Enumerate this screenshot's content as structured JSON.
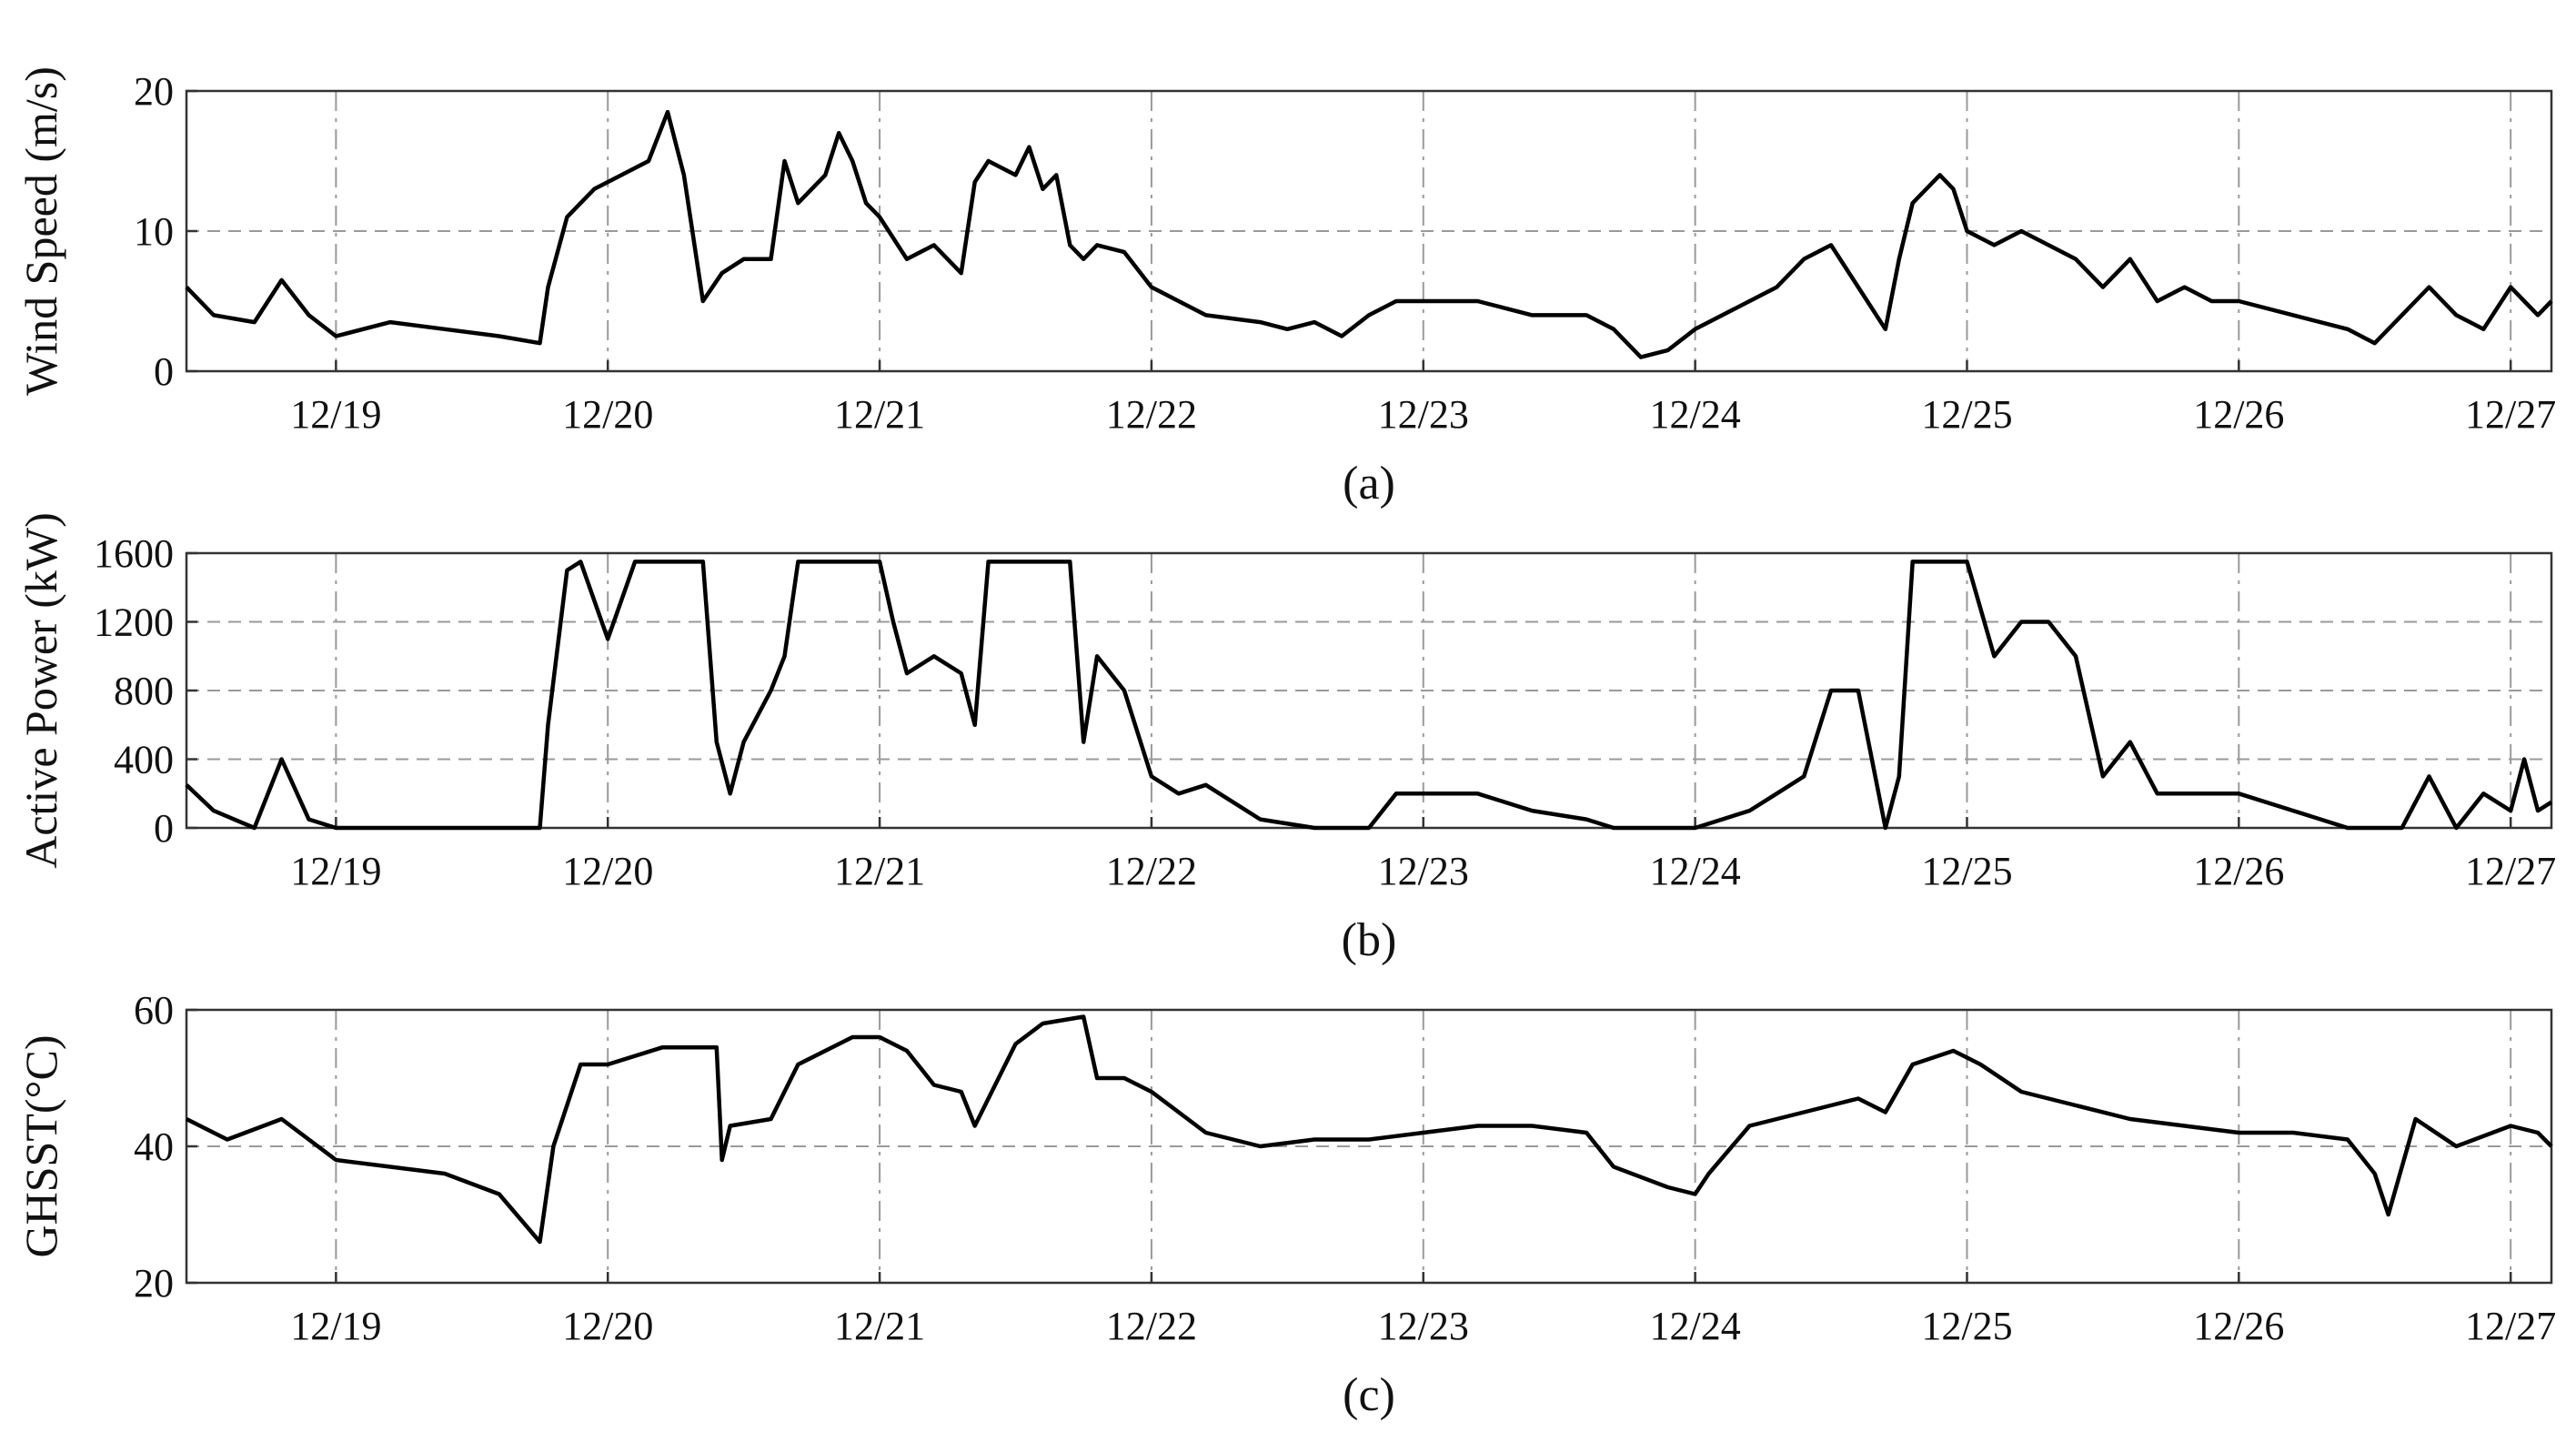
{
  "chart_data": [
    {
      "type": "line",
      "panel": "a",
      "caption": "(a)",
      "ylabel": "Wind Speed (m/s)",
      "xlabel": "",
      "ylim": [
        0,
        20
      ],
      "yticks": [
        0,
        10,
        20
      ],
      "xlim": [
        18.45,
        27.15
      ],
      "xticks": [
        {
          "v": 19,
          "label": "12/19"
        },
        {
          "v": 20,
          "label": "12/20"
        },
        {
          "v": 21,
          "label": "12/21"
        },
        {
          "v": 22,
          "label": "12/22"
        },
        {
          "v": 23,
          "label": "12/23"
        },
        {
          "v": 24,
          "label": "12/24"
        },
        {
          "v": 25,
          "label": "12/25"
        },
        {
          "v": 26,
          "label": "12/26"
        },
        {
          "v": 27,
          "label": "12/27"
        }
      ],
      "grid": true,
      "series": [
        {
          "name": "",
          "x": [
            18.45,
            18.55,
            18.7,
            18.8,
            18.9,
            19.0,
            19.2,
            19.4,
            19.6,
            19.75,
            19.78,
            19.85,
            19.95,
            20.05,
            20.15,
            20.22,
            20.28,
            20.35,
            20.42,
            20.5,
            20.6,
            20.65,
            20.7,
            20.8,
            20.85,
            20.9,
            20.95,
            21.0,
            21.1,
            21.2,
            21.3,
            21.35,
            21.4,
            21.5,
            21.55,
            21.6,
            21.65,
            21.7,
            21.75,
            21.8,
            21.9,
            22.0,
            22.1,
            22.2,
            22.4,
            22.5,
            22.6,
            22.7,
            22.8,
            22.9,
            23.0,
            23.2,
            23.4,
            23.6,
            23.7,
            23.8,
            23.9,
            24.0,
            24.2,
            24.3,
            24.4,
            24.5,
            24.6,
            24.7,
            24.75,
            24.8,
            24.9,
            24.95,
            25.0,
            25.1,
            25.2,
            25.3,
            25.4,
            25.5,
            25.6,
            25.7,
            25.8,
            25.9,
            26.0,
            26.2,
            26.4,
            26.5,
            26.6,
            26.7,
            26.8,
            26.9,
            27.0,
            27.05,
            27.1,
            27.15
          ],
          "values": [
            6,
            4,
            3.5,
            6.5,
            4,
            2.5,
            3.5,
            3,
            2.5,
            2,
            6,
            11,
            13,
            14,
            15,
            18.5,
            14,
            5,
            7,
            8,
            8,
            15,
            12,
            14,
            17,
            15,
            12,
            11,
            8,
            9,
            7,
            13.5,
            15,
            14,
            16,
            13,
            14,
            9,
            8,
            9,
            8.5,
            6,
            5,
            4,
            3.5,
            3,
            3.5,
            2.5,
            4,
            5,
            5,
            5,
            4,
            4,
            3,
            1,
            1.5,
            3,
            5,
            6,
            8,
            9,
            6,
            3,
            8,
            12,
            14,
            13,
            10,
            9,
            10,
            9,
            8,
            6,
            8,
            5,
            6,
            5,
            5,
            4,
            3,
            2,
            4,
            6,
            4,
            3,
            6,
            5,
            4,
            5
          ]
        }
      ]
    },
    {
      "type": "line",
      "panel": "b",
      "caption": "(b)",
      "ylabel": "Active Power (kW)",
      "xlabel": "",
      "ylim": [
        0,
        1600
      ],
      "yticks": [
        0,
        400,
        800,
        1200,
        1600
      ],
      "xlim": [
        18.45,
        27.15
      ],
      "xticks": [
        {
          "v": 19,
          "label": "12/19"
        },
        {
          "v": 20,
          "label": "12/20"
        },
        {
          "v": 21,
          "label": "12/21"
        },
        {
          "v": 22,
          "label": "12/22"
        },
        {
          "v": 23,
          "label": "12/23"
        },
        {
          "v": 24,
          "label": "12/24"
        },
        {
          "v": 25,
          "label": "12/25"
        },
        {
          "v": 26,
          "label": "12/26"
        },
        {
          "v": 27,
          "label": "12/27"
        }
      ],
      "grid": true,
      "series": [
        {
          "name": "",
          "x": [
            18.45,
            18.55,
            18.7,
            18.8,
            18.9,
            19.0,
            19.2,
            19.4,
            19.6,
            19.75,
            19.78,
            19.85,
            19.9,
            20.0,
            20.1,
            20.2,
            20.3,
            20.35,
            20.4,
            20.45,
            20.5,
            20.6,
            20.65,
            20.7,
            20.9,
            21.0,
            21.05,
            21.1,
            21.2,
            21.3,
            21.35,
            21.4,
            21.5,
            21.6,
            21.7,
            21.75,
            21.8,
            21.9,
            22.0,
            22.1,
            22.2,
            22.4,
            22.6,
            22.7,
            22.8,
            22.9,
            23.0,
            23.2,
            23.4,
            23.6,
            23.7,
            24.0,
            24.2,
            24.3,
            24.4,
            24.5,
            24.6,
            24.65,
            24.7,
            24.75,
            24.8,
            24.9,
            25.0,
            25.1,
            25.2,
            25.3,
            25.4,
            25.5,
            25.6,
            25.7,
            25.8,
            26.0,
            26.2,
            26.4,
            26.6,
            26.7,
            26.8,
            26.9,
            27.0,
            27.05,
            27.1,
            27.15
          ],
          "values": [
            250,
            100,
            0,
            400,
            50,
            0,
            0,
            0,
            0,
            0,
            600,
            1500,
            1550,
            1100,
            1550,
            1550,
            1550,
            1550,
            500,
            200,
            500,
            800,
            1000,
            1550,
            1550,
            1550,
            1200,
            900,
            1000,
            900,
            600,
            1550,
            1550,
            1550,
            1550,
            500,
            1000,
            800,
            300,
            200,
            250,
            50,
            0,
            0,
            0,
            200,
            200,
            200,
            100,
            50,
            0,
            0,
            100,
            200,
            300,
            800,
            800,
            400,
            0,
            300,
            1550,
            1550,
            1550,
            1000,
            1200,
            1200,
            1000,
            300,
            500,
            200,
            200,
            200,
            100,
            0,
            0,
            300,
            0,
            200,
            100,
            400,
            100,
            150
          ]
        }
      ]
    },
    {
      "type": "line",
      "panel": "c",
      "caption": "(c)",
      "ylabel": "GHSST(°C)",
      "xlabel": "",
      "ylim": [
        20,
        60
      ],
      "yticks": [
        20,
        40,
        60
      ],
      "xlim": [
        18.45,
        27.15
      ],
      "xticks": [
        {
          "v": 19,
          "label": "12/19"
        },
        {
          "v": 20,
          "label": "12/20"
        },
        {
          "v": 21,
          "label": "12/21"
        },
        {
          "v": 22,
          "label": "12/22"
        },
        {
          "v": 23,
          "label": "12/23"
        },
        {
          "v": 24,
          "label": "12/24"
        },
        {
          "v": 25,
          "label": "12/25"
        },
        {
          "v": 26,
          "label": "12/26"
        },
        {
          "v": 27,
          "label": "12/27"
        }
      ],
      "grid": true,
      "series": [
        {
          "name": "",
          "x": [
            18.45,
            18.6,
            18.8,
            19.0,
            19.2,
            19.4,
            19.6,
            19.75,
            19.8,
            19.9,
            20.0,
            20.2,
            20.4,
            20.42,
            20.45,
            20.6,
            20.7,
            20.9,
            21.0,
            21.1,
            21.2,
            21.3,
            21.35,
            21.5,
            21.6,
            21.75,
            21.8,
            21.9,
            22.0,
            22.2,
            22.4,
            22.6,
            22.8,
            23.0,
            23.2,
            23.4,
            23.6,
            23.7,
            23.9,
            24.0,
            24.05,
            24.2,
            24.4,
            24.5,
            24.6,
            24.7,
            24.8,
            24.95,
            25.05,
            25.2,
            25.4,
            25.6,
            25.8,
            26.0,
            26.2,
            26.4,
            26.5,
            26.55,
            26.65,
            26.8,
            27.0,
            27.1,
            27.15
          ],
          "values": [
            44,
            41,
            44,
            38,
            37,
            36,
            33,
            26,
            40,
            52,
            52,
            54.5,
            54.5,
            38,
            43,
            44,
            52,
            56,
            56,
            54,
            49,
            48,
            43,
            55,
            58,
            59,
            50,
            50,
            48,
            42,
            40,
            41,
            41,
            42,
            43,
            43,
            42,
            37,
            34,
            33,
            36,
            43,
            45,
            46,
            47,
            45,
            52,
            54,
            52,
            48,
            46,
            44,
            43,
            42,
            42,
            41,
            36,
            30,
            44,
            40,
            43,
            42,
            40
          ]
        }
      ]
    }
  ]
}
